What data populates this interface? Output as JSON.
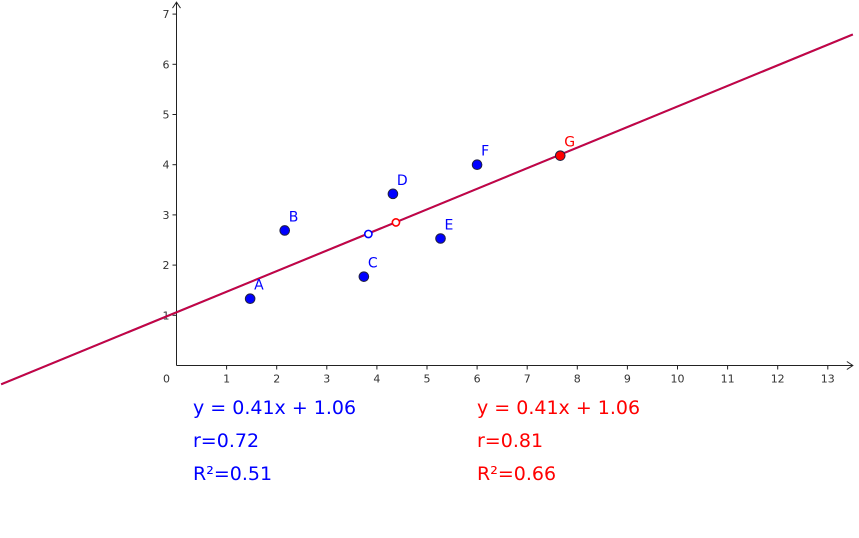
{
  "chart_data": {
    "type": "scatter",
    "xlim": [
      -3.5,
      13.5
    ],
    "ylim": [
      0,
      7
    ],
    "x_ticks": [
      0,
      1,
      2,
      3,
      4,
      5,
      6,
      7,
      8,
      9,
      10,
      11,
      12,
      13
    ],
    "y_ticks": [
      1,
      2,
      3,
      4,
      5,
      6,
      7
    ],
    "grid": false,
    "points": [
      {
        "label": "A",
        "x": 1.47,
        "y": 1.33,
        "color": "#0000ff"
      },
      {
        "label": "B",
        "x": 2.16,
        "y": 2.69,
        "color": "#0000ff"
      },
      {
        "label": "C",
        "x": 3.74,
        "y": 1.77,
        "color": "#0000ff"
      },
      {
        "label": "D",
        "x": 4.32,
        "y": 3.42,
        "color": "#0000ff"
      },
      {
        "label": "E",
        "x": 5.27,
        "y": 2.53,
        "color": "#0000ff"
      },
      {
        "label": "F",
        "x": 6.0,
        "y": 4.0,
        "color": "#0000ff"
      },
      {
        "label": "G",
        "x": 7.66,
        "y": 4.18,
        "color": "#ff0000"
      }
    ],
    "centroids": [
      {
        "x": 3.83,
        "y": 2.62,
        "color": "#0000ff"
      },
      {
        "x": 4.38,
        "y": 2.85,
        "color": "#ff0000"
      }
    ],
    "regression_lines": [
      {
        "slope": 0.41,
        "intercept": 1.06,
        "color": "#0000ff"
      },
      {
        "slope": 0.41,
        "intercept": 1.06,
        "color": "#ff0000"
      }
    ],
    "stats": {
      "blue": {
        "equation": "y = 0.41x + 1.06",
        "r": "r=0.72",
        "r2": "R²=0.51",
        "color": "#0000ff"
      },
      "red": {
        "equation": "y = 0.41x + 1.06",
        "r": "r=0.81",
        "r2": "R²=0.66",
        "color": "#ff0000"
      }
    }
  }
}
